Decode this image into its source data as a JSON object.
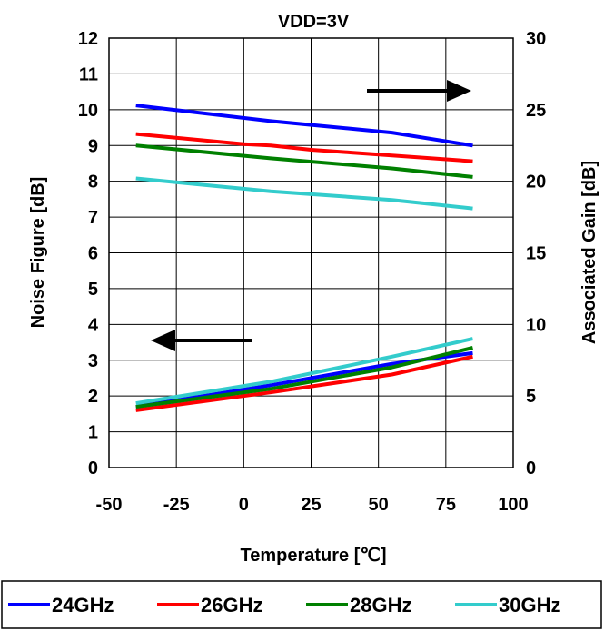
{
  "chart_data": {
    "type": "line",
    "title": "VDD=3V",
    "xlabel": "Temperature [℃]",
    "ylabel": "Noise Figure [dB]",
    "y2label": "Associated Gain [dB]",
    "xlim": [
      -50,
      100
    ],
    "ylim": [
      0,
      12
    ],
    "y2lim": [
      0,
      30
    ],
    "xticks": [
      "-50",
      "-25",
      "0",
      "25",
      "50",
      "75",
      "100"
    ],
    "yticks": [
      "0",
      "1",
      "2",
      "3",
      "4",
      "5",
      "6",
      "7",
      "8",
      "9",
      "10",
      "11",
      "12"
    ],
    "y2ticks": [
      "0",
      "5",
      "10",
      "15",
      "20",
      "25",
      "30"
    ],
    "grid": true,
    "legend": "bottom",
    "left_arrow_meaning": "noise figure curves use left axis",
    "right_arrow_meaning": "gain curves use right axis",
    "series": [
      {
        "name": "24GHz",
        "color": "#0000ff",
        "quantity": "gain",
        "axis": "right",
        "x": [
          -40,
          10,
          55,
          85
        ],
        "y": [
          25.3,
          24.2,
          23.4,
          22.5
        ]
      },
      {
        "name": "26GHz",
        "color": "#ff0000",
        "quantity": "gain",
        "axis": "right",
        "x": [
          -40,
          0,
          10,
          25,
          40,
          55,
          85
        ],
        "y": [
          23.3,
          22.6,
          22.5,
          22.2,
          22.0,
          21.8,
          21.4
        ]
      },
      {
        "name": "28GHz",
        "color": "#008000",
        "quantity": "gain",
        "axis": "right",
        "x": [
          -40,
          10,
          55,
          85
        ],
        "y": [
          22.5,
          21.6,
          20.9,
          20.3
        ]
      },
      {
        "name": "30GHz",
        "color": "#33cccc",
        "quantity": "gain",
        "axis": "right",
        "x": [
          -40,
          10,
          55,
          85
        ],
        "y": [
          20.2,
          19.3,
          18.7,
          18.1
        ]
      },
      {
        "name": "24GHz",
        "color": "#0000ff",
        "quantity": "noise figure",
        "axis": "left",
        "x": [
          -40,
          10,
          55,
          85
        ],
        "y": [
          1.7,
          2.3,
          2.9,
          3.2
        ]
      },
      {
        "name": "26GHz",
        "color": "#ff0000",
        "quantity": "noise figure",
        "axis": "left",
        "x": [
          -40,
          10,
          55,
          85
        ],
        "y": [
          1.6,
          2.1,
          2.6,
          3.1
        ]
      },
      {
        "name": "28GHz",
        "color": "#008000",
        "quantity": "noise figure",
        "axis": "left",
        "x": [
          -40,
          10,
          55,
          85
        ],
        "y": [
          1.7,
          2.2,
          2.8,
          3.35
        ]
      },
      {
        "name": "30GHz",
        "color": "#33cccc",
        "quantity": "noise figure",
        "axis": "left",
        "x": [
          -40,
          10,
          55,
          85
        ],
        "y": [
          1.8,
          2.4,
          3.1,
          3.6
        ]
      }
    ]
  }
}
